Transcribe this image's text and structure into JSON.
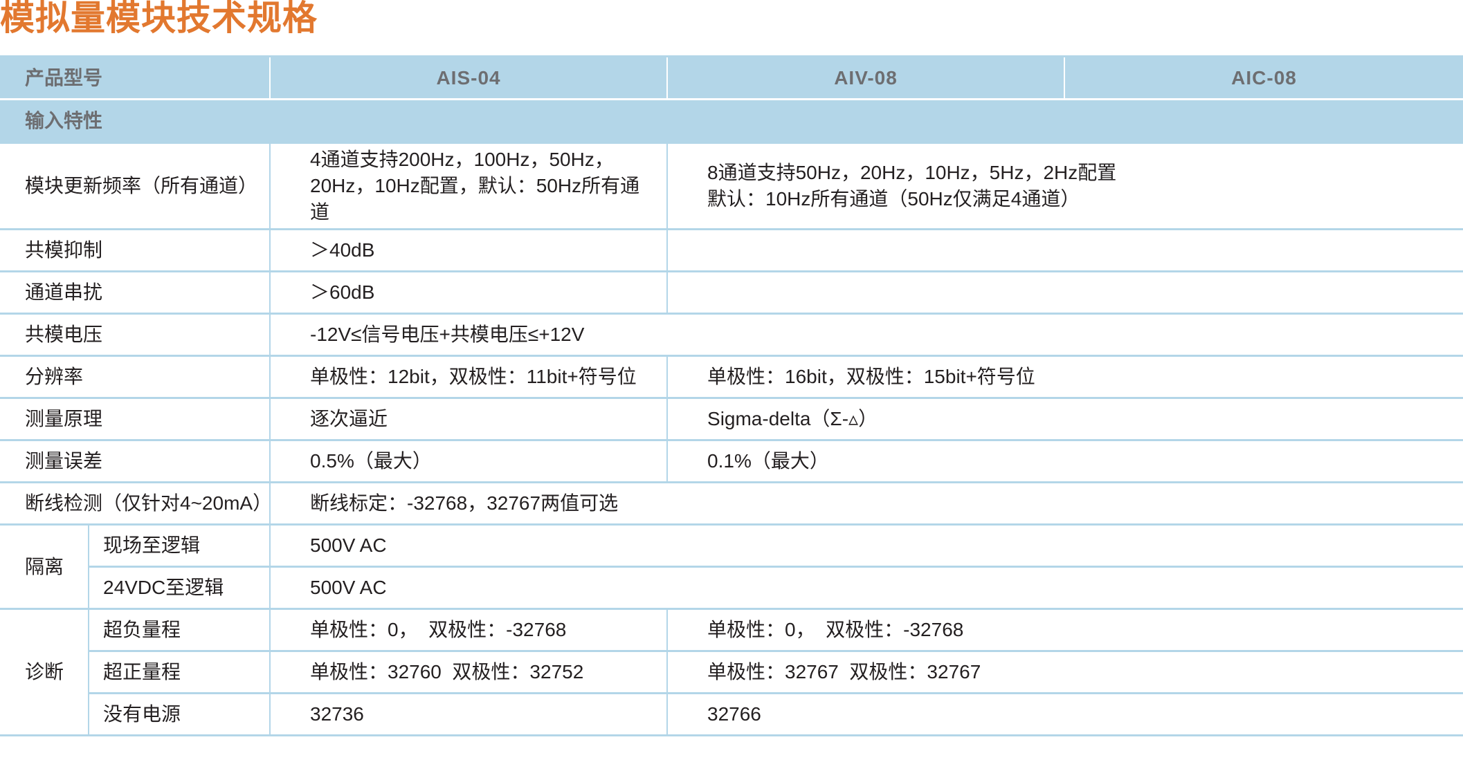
{
  "title": "模拟量模块技术规格",
  "header": {
    "label": "产品型号",
    "models": [
      "AIS-04",
      "AIV-08",
      "AIC-08"
    ]
  },
  "section": "输入特性",
  "rows": {
    "update_rate": {
      "label": "模块更新频率（所有通道）",
      "ais": "4通道支持200Hz，100Hz，50Hz，20Hz，10Hz配置，默认：50Hz所有通道",
      "aiv_aic_line1": "8通道支持50Hz，20Hz，10Hz，5Hz，2Hz配置",
      "aiv_aic_line2": "默认：10Hz所有通道（50Hz仅满足4通道）"
    },
    "cmrr": {
      "label": "共模抑制",
      "ais": "＞40dB",
      "aiv_aic": ""
    },
    "crosstalk": {
      "label": "通道串扰",
      "ais": "＞60dB",
      "aiv_aic": ""
    },
    "cm_voltage": {
      "label": "共模电压",
      "all": "-12V≤信号电压+共模电压≤+12V"
    },
    "resolution": {
      "label": "分辨率",
      "ais": "单极性：12bit，双极性：11bit+符号位",
      "aiv_aic": "单极性：16bit，双极性：15bit+符号位"
    },
    "principle": {
      "label": "测量原理",
      "ais": "逐次逼近",
      "aiv_aic": "Sigma-delta（Σ-▵）"
    },
    "error": {
      "label": "测量误差",
      "ais": "0.5%（最大）",
      "aiv_aic": "0.1%（最大）"
    },
    "wire_break": {
      "label": "断线检测（仅针对4~20mA）",
      "all": "断线标定：-32768，32767两值可选"
    },
    "isolation": {
      "label": "隔离",
      "field_label": "现场至逻辑",
      "field_value": "500V AC",
      "dc_label": "24VDC至逻辑",
      "dc_value": "500V AC"
    },
    "diagnostics": {
      "label": "诊断",
      "underrange": {
        "label": "超负量程",
        "ais": "单极性：0，  双极性：-32768",
        "aiv_aic": "单极性：0，  双极性：-32768"
      },
      "overrange": {
        "label": "超正量程",
        "ais": "单极性：32760  双极性：32752",
        "aiv_aic": "单极性：32767  双极性：32767"
      },
      "no_power": {
        "label": "没有电源",
        "ais": "32736",
        "aiv_aic": "32766"
      }
    }
  }
}
